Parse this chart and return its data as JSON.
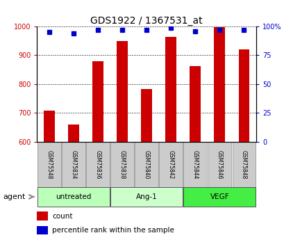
{
  "title": "GDS1922 / 1367531_at",
  "categories": [
    "GSM75548",
    "GSM75834",
    "GSM75836",
    "GSM75838",
    "GSM75840",
    "GSM75842",
    "GSM75844",
    "GSM75846",
    "GSM75848"
  ],
  "bar_values": [
    707,
    660,
    878,
    948,
    782,
    963,
    861,
    998,
    921
  ],
  "bar_bottom": 600,
  "percentile_values": [
    95,
    94,
    97,
    97,
    97,
    99,
    96,
    97,
    97
  ],
  "bar_color": "#cc0000",
  "percentile_color": "#0000cc",
  "ylim_left": [
    600,
    1000
  ],
  "ylim_right": [
    0,
    100
  ],
  "yticks_left": [
    600,
    700,
    800,
    900,
    1000
  ],
  "ytick_labels_left": [
    "600",
    "700",
    "800",
    "900",
    "1000"
  ],
  "yticks_right": [
    0,
    25,
    50,
    75,
    100
  ],
  "ytick_labels_right": [
    "0",
    "25",
    "50",
    "75",
    "100%"
  ],
  "groups": [
    {
      "label": "untreated",
      "start": 0,
      "end": 3,
      "color": "#bbffbb"
    },
    {
      "label": "Ang-1",
      "start": 3,
      "end": 6,
      "color": "#ccffcc"
    },
    {
      "label": "VEGF",
      "start": 6,
      "end": 9,
      "color": "#44ee44"
    }
  ],
  "agent_label": "agent",
  "legend_items": [
    {
      "label": "count",
      "color": "#cc0000"
    },
    {
      "label": "percentile rank within the sample",
      "color": "#0000cc"
    }
  ],
  "background_color": "#ffffff",
  "plot_bg_color": "#ffffff",
  "sample_label_bg": "#cccccc",
  "tick_label_fontsize": 7,
  "bar_width": 0.45,
  "figsize": [
    4.1,
    3.45
  ],
  "dpi": 100
}
